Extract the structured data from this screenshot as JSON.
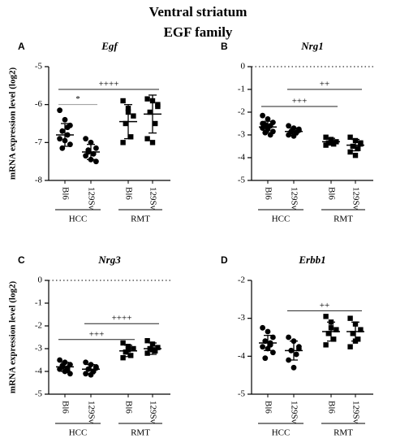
{
  "title": "Ventral striatum",
  "subtitle": "EGF family",
  "chart_data": [
    {
      "type": "dot",
      "panel": "A",
      "title": "Egf",
      "ylabel": "mRNA expression level (log2)",
      "categories": [
        "Bl6",
        "129Sv",
        "Bl6",
        "129Sv"
      ],
      "groups": [
        "HCC",
        "RMT"
      ],
      "markers": [
        "circle",
        "circle",
        "square",
        "square"
      ],
      "ylim": [
        -8,
        -5
      ],
      "yticks": [
        -8,
        -7,
        -6,
        -5
      ],
      "points": [
        [
          -6.15,
          -6.4,
          -6.55,
          -6.7,
          -6.8,
          -6.9,
          -6.95,
          -7.05,
          -7.15,
          -6.6
        ],
        [
          -6.9,
          -7.0,
          -7.15,
          -7.2,
          -7.3,
          -7.35,
          -7.45,
          -7.5,
          -7.25
        ],
        [
          -5.9,
          -6.2,
          -6.3,
          -6.5,
          -6.85,
          -7.0,
          -6.1
        ],
        [
          -5.85,
          -5.9,
          -6.0,
          -6.2,
          -6.5,
          -6.9,
          -7.0,
          -6.05
        ]
      ],
      "means": [
        -6.8,
        -7.25,
        -6.45,
        -6.25
      ],
      "sds": [
        0.3,
        0.2,
        0.45,
        0.5
      ],
      "annotations": [
        {
          "text": "*",
          "from": 0,
          "to": 1,
          "y": -6.0,
          "color": "#999999"
        },
        {
          "text": "++++",
          "from": 0,
          "to": 3,
          "y": -5.6,
          "color": "#222222"
        }
      ]
    },
    {
      "type": "dot",
      "panel": "B",
      "title": "Nrg1",
      "categories": [
        "Bl6",
        "129Sv",
        "Bl6",
        "129Sv"
      ],
      "groups": [
        "HCC",
        "RMT"
      ],
      "markers": [
        "circle",
        "circle",
        "square",
        "square"
      ],
      "ylim": [
        -5,
        0
      ],
      "yticks": [
        -5,
        -4,
        -3,
        -2,
        -1,
        0
      ],
      "zero_line": true,
      "points": [
        [
          -2.15,
          -2.3,
          -2.45,
          -2.55,
          -2.6,
          -2.7,
          -2.75,
          -2.85,
          -2.9,
          -3.0,
          -2.5,
          -2.65
        ],
        [
          -2.6,
          -2.7,
          -2.8,
          -2.85,
          -2.9,
          -3.0,
          -3.05,
          -2.75
        ],
        [
          -3.1,
          -3.2,
          -3.3,
          -3.35,
          -3.4,
          -3.45,
          -3.25
        ],
        [
          -3.1,
          -3.25,
          -3.4,
          -3.5,
          -3.6,
          -3.75,
          -3.9,
          -3.35
        ]
      ],
      "means": [
        -2.65,
        -2.85,
        -3.3,
        -3.45
      ],
      "sds": [
        0.25,
        0.15,
        0.15,
        0.25
      ],
      "annotations": [
        {
          "text": "++",
          "from": 1,
          "to": 3,
          "y": -1.0,
          "color": "#222222"
        },
        {
          "text": "+++",
          "from": 0,
          "to": 2,
          "y": -1.75,
          "color": "#222222"
        }
      ]
    },
    {
      "type": "dot",
      "panel": "C",
      "title": "Nrg3",
      "ylabel": "mRNA expression level (log2)",
      "categories": [
        "Bl6",
        "129Sv",
        "Bl6",
        "129Sv"
      ],
      "groups": [
        "HCC",
        "RMT"
      ],
      "markers": [
        "circle",
        "circle",
        "square",
        "square"
      ],
      "ylim": [
        -5,
        0
      ],
      "yticks": [
        -5,
        -4,
        -3,
        -2,
        -1,
        0
      ],
      "zero_line": true,
      "points": [
        [
          -3.5,
          -3.6,
          -3.7,
          -3.8,
          -3.85,
          -3.9,
          -4.0,
          -4.1,
          -3.75,
          -3.95
        ],
        [
          -3.6,
          -3.7,
          -3.8,
          -3.9,
          -4.0,
          -4.1,
          -4.15,
          -3.85
        ],
        [
          -2.75,
          -2.9,
          -3.0,
          -3.15,
          -3.3,
          -3.4,
          -3.05
        ],
        [
          -2.65,
          -2.8,
          -2.95,
          -3.0,
          -3.1,
          -3.2,
          -3.05
        ]
      ],
      "means": [
        -3.8,
        -3.9,
        -3.1,
        -3.0
      ],
      "sds": [
        0.2,
        0.2,
        0.25,
        0.25
      ],
      "annotations": [
        {
          "text": "++++",
          "from": 1,
          "to": 3,
          "y": -1.9,
          "color": "#222222"
        },
        {
          "text": "+++",
          "from": 0,
          "to": 2,
          "y": -2.6,
          "color": "#222222"
        }
      ]
    },
    {
      "type": "dot",
      "panel": "D",
      "title": "Erbb1",
      "categories": [
        "Bl6",
        "129Sv",
        "Bl6",
        "129Sv"
      ],
      "groups": [
        "HCC",
        "RMT"
      ],
      "markers": [
        "circle",
        "circle",
        "square",
        "square"
      ],
      "ylim": [
        -5,
        -2
      ],
      "yticks": [
        -5,
        -4,
        -3,
        -2
      ],
      "points": [
        [
          -3.25,
          -3.35,
          -3.5,
          -3.6,
          -3.7,
          -3.75,
          -3.8,
          -3.9,
          -4.05,
          -3.65
        ],
        [
          -3.5,
          -3.6,
          -3.75,
          -3.85,
          -3.95,
          -4.1,
          -4.3,
          -3.8
        ],
        [
          -2.95,
          -3.1,
          -3.3,
          -3.4,
          -3.55,
          -3.7,
          -3.25
        ],
        [
          -3.0,
          -3.15,
          -3.3,
          -3.4,
          -3.55,
          -3.75,
          -3.6
        ]
      ],
      "means": [
        -3.65,
        -3.85,
        -3.35,
        -3.35
      ],
      "sds": [
        0.2,
        0.25,
        0.25,
        0.25
      ],
      "annotations": [
        {
          "text": "++",
          "from": 1,
          "to": 3,
          "y": -2.8,
          "color": "#222222"
        }
      ]
    }
  ]
}
